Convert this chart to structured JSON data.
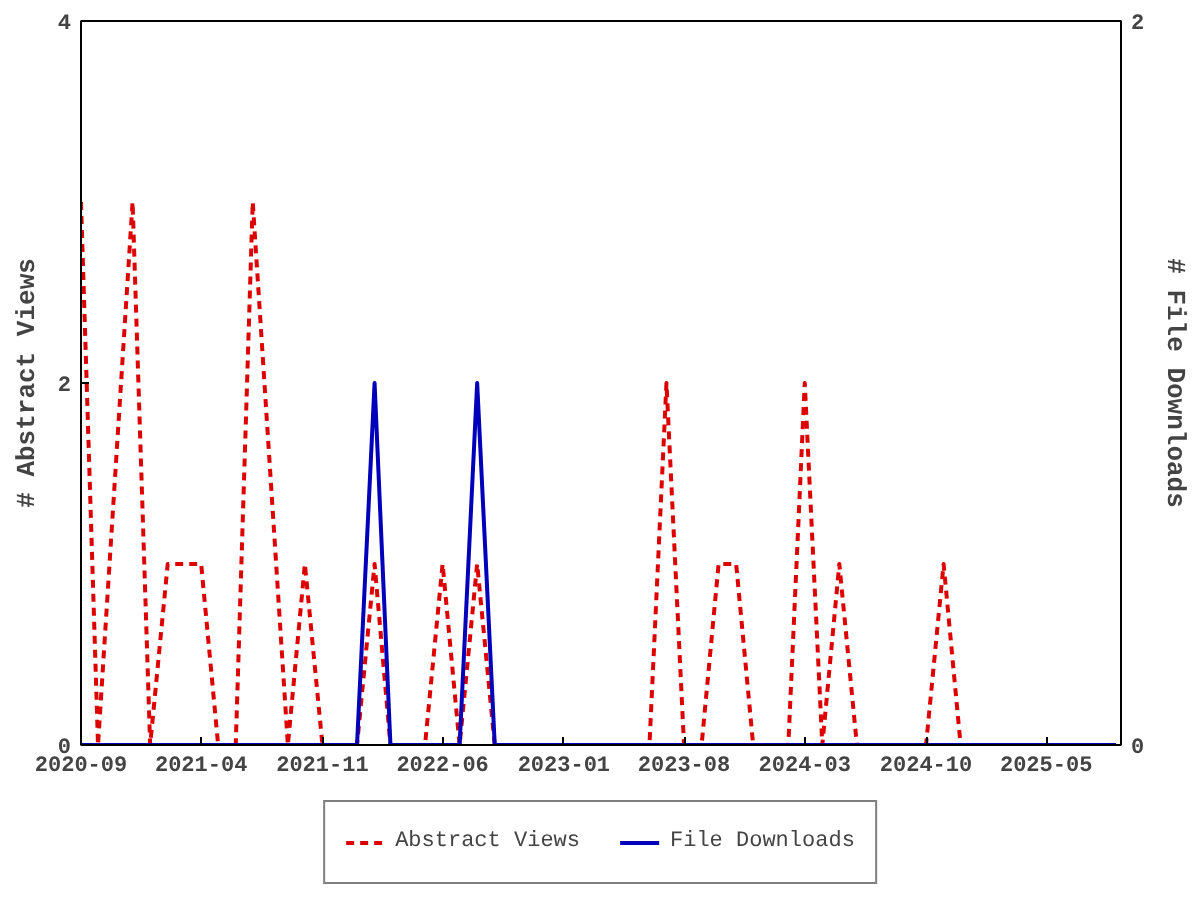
{
  "chart_data": {
    "type": "line",
    "ylabel": "# Abstract Views",
    "y2label": "# File Downloads",
    "ylim": [
      0,
      4
    ],
    "yticks": [
      0,
      2,
      4
    ],
    "y2lim": [
      0,
      2
    ],
    "y2ticks": [
      0,
      2
    ],
    "xlim": [
      "2020-09",
      "2025-09-10"
    ],
    "xticks": [
      "2020-09",
      "2021-04",
      "2021-11",
      "2022-06",
      "2023-01",
      "2023-08",
      "2024-03",
      "2024-10",
      "2025-05"
    ],
    "grid": false,
    "legend": "bottom",
    "marker": "none",
    "series": [
      {
        "name": "Abstract Views",
        "color": "#dd0000",
        "line_style": "dashed",
        "x": [
          "2020-09",
          "2020-10",
          "2020-12",
          "2021-01",
          "2021-02",
          "2021-03",
          "2021-04",
          "2021-05",
          "2021-06",
          "2021-07",
          "2021-09",
          "2021-10",
          "2021-11",
          "2022-01",
          "2022-02",
          "2022-03",
          "2022-05",
          "2022-06",
          "2022-07",
          "2022-08",
          "2022-09",
          "2023-06",
          "2023-07",
          "2023-08",
          "2023-09",
          "2023-10",
          "2023-11",
          "2023-12",
          "2024-02",
          "2024-03",
          "2024-04",
          "2024-05",
          "2024-06",
          "2024-10",
          "2024-11",
          "2024-12",
          "2025-09"
        ],
        "values": [
          3,
          0,
          3,
          0,
          1,
          1,
          1,
          0,
          0,
          3,
          0,
          1,
          0,
          0,
          1,
          0,
          0,
          1,
          0,
          1,
          0,
          0,
          2,
          0,
          0,
          1,
          1,
          0,
          0,
          2,
          0,
          1,
          0,
          0,
          1,
          0,
          0
        ]
      },
      {
        "name": "File Downloads",
        "color": "#0000bb",
        "line_style": "solid",
        "axis": "y2",
        "x": [
          "2020-09",
          "2022-01",
          "2022-02",
          "2022-03",
          "2022-07",
          "2022-08",
          "2022-09",
          "2025-09"
        ],
        "values": [
          0,
          0,
          1,
          0,
          0,
          1,
          0,
          0
        ]
      }
    ]
  }
}
